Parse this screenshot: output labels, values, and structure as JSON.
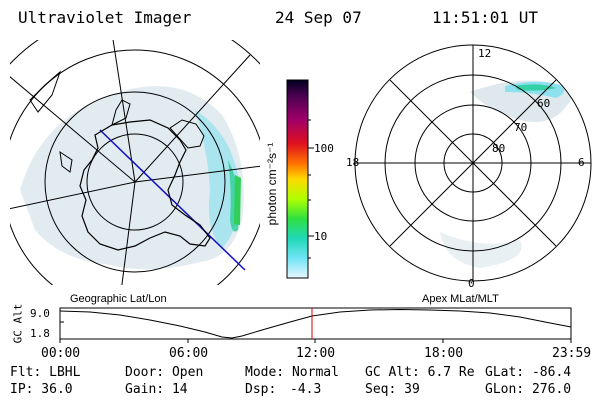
{
  "header": {
    "instrument": "Ultraviolet Imager",
    "date": "24 Sep 07",
    "time": "11:51:01 UT"
  },
  "colorbar": {
    "unit_label": "photon cm⁻²s⁻¹",
    "ticks": [
      "100",
      "10"
    ],
    "colors": [
      "#000020",
      "#4a0050",
      "#80007a",
      "#b0006a",
      "#d80030",
      "#ff4000",
      "#ff9a00",
      "#ffe000",
      "#9aff00",
      "#22e060",
      "#20d8b0",
      "#40e0f0",
      "#a0eaf8",
      "#e0f4ff"
    ]
  },
  "left_panel": {
    "label": "Geographic Lat/Lon"
  },
  "right_panel": {
    "label": "Apex MLat/MLT",
    "clock_labels": {
      "top": "12",
      "left": "18",
      "right": "6",
      "bottom": "0"
    },
    "ring_labels": [
      "60",
      "70",
      "80"
    ]
  },
  "altitude_plot": {
    "ylabel": "GC Alt",
    "yticks": [
      "9.0",
      "1.8"
    ],
    "xticks": [
      "00:00",
      "06:00",
      "12:00",
      "18:00",
      "23:59"
    ],
    "marker_time": "11:51",
    "marker_color": "#dd0000"
  },
  "info": {
    "row1": {
      "flt": "Flt: LBHL",
      "door": "Door: Open",
      "mode": "Mode: Normal",
      "gcalt": "GC Alt: 6.7 Re",
      "glat": "GLat: -86.4"
    },
    "row2": {
      "ip": "IP: 36.0",
      "gain": "Gain: 14",
      "dsp_label": "Dsp:",
      "dsp_value": "-4.3",
      "seq": "Seq: 39",
      "glon": "GLon: 276.0"
    }
  }
}
